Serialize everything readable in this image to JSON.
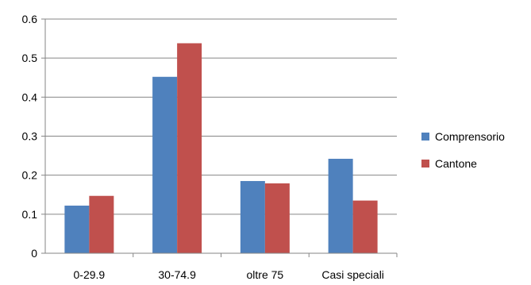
{
  "chart_data": {
    "type": "bar",
    "title": "",
    "xlabel": "",
    "ylabel": "",
    "categories": [
      "0-29.9",
      "30-74.9",
      "oltre 75",
      "Casi speciali"
    ],
    "series": [
      {
        "name": "Comprensorio",
        "color": "#4F81BD",
        "values": [
          0.122,
          0.452,
          0.185,
          0.242
        ]
      },
      {
        "name": "Cantone",
        "color": "#C0504D",
        "values": [
          0.147,
          0.538,
          0.179,
          0.135
        ]
      }
    ],
    "ylim": [
      0,
      0.6
    ],
    "yticks": [
      "0",
      "0.1",
      "0.2",
      "0.3",
      "0.4",
      "0.5",
      "0.6"
    ],
    "grid": true,
    "gridlines": "horizontal",
    "legend_position": "right"
  }
}
